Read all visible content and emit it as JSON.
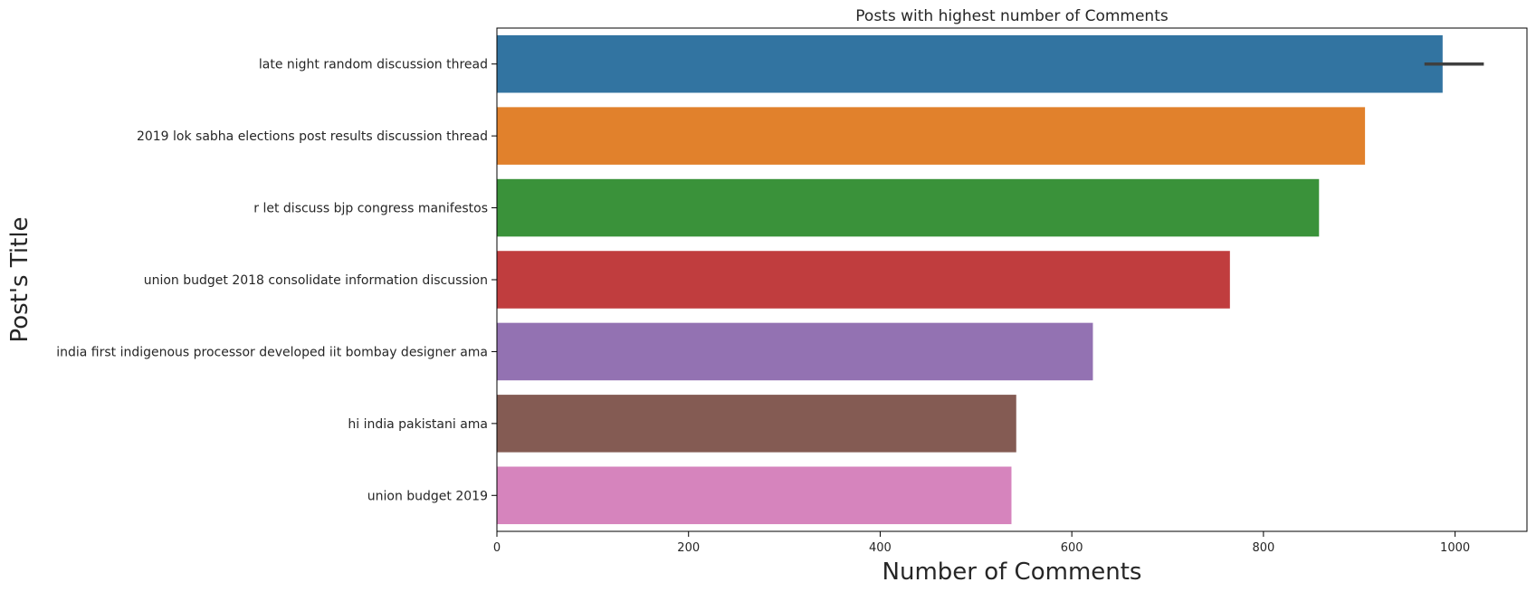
{
  "chart_data": {
    "type": "bar",
    "orientation": "horizontal",
    "title": "Posts with highest number of Comments",
    "xlabel": "Number of Comments",
    "ylabel": "Post's Title",
    "xlim": [
      0,
      1075
    ],
    "x_ticks": [
      0,
      200,
      400,
      600,
      800,
      1000
    ],
    "grid": false,
    "categories": [
      "late night random discussion thread",
      "2019 lok sabha elections post results discussion thread",
      "r let discuss bjp congress manifestos",
      "union budget 2018 consolidate information discussion",
      "india first indigenous processor developed iit bombay designer ama",
      "hi india pakistani ama",
      "union budget 2019"
    ],
    "values": [
      987,
      906,
      858,
      765,
      622,
      542,
      537
    ],
    "error_bars": [
      [
        968,
        1030
      ],
      null,
      null,
      null,
      null,
      null,
      null
    ],
    "colors": [
      "#3274a1",
      "#e1812c",
      "#3a923a",
      "#c03d3e",
      "#9372b2",
      "#845b53",
      "#d684bd"
    ]
  }
}
